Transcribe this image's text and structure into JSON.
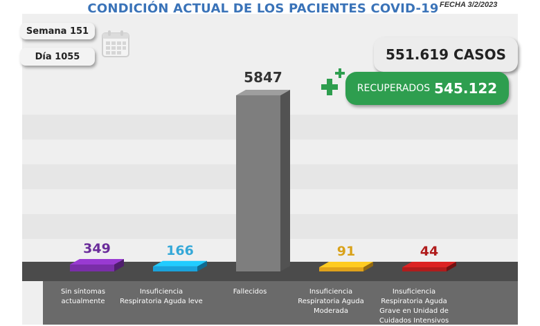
{
  "title": "CONDICIÓN ACTUAL DE LOS PACIENTES COVID-19",
  "fecha": "FECHA 3/2/2023",
  "semana": "Semana 151",
  "dia": "Día 1055",
  "casos": "551.619 CASOS",
  "recuperados_label": "RECUPERADOS",
  "recuperados_value": "545.122",
  "icons": [
    "calendar-icon",
    "plus-icon"
  ],
  "colors": {
    "title": "#3a73b8",
    "recuperados": "#2e9e4f"
  },
  "chart_data": {
    "type": "bar",
    "categories": [
      "Sin síntomas actualmente",
      "Insuficiencia Respiratoria Aguda leve",
      "Fallecidos",
      "Insuficiencia Respiratoria Aguda Moderada",
      "Insuficiencia Respiratoria Aguda Grave en Unidad de Cuidados Intensivos"
    ],
    "values": [
      349,
      166,
      5847,
      91,
      44
    ],
    "value_labels": [
      "349",
      "166",
      "5847",
      "91",
      "44"
    ],
    "colors": [
      "#7a2ea8",
      "#1aa3dc",
      "#7e7e7e",
      "#e0a21a",
      "#b01c1c"
    ],
    "label_colors": [
      "#6a2c9a",
      "#35a8d8",
      "#333333",
      "#d9a21a",
      "#b01c1c"
    ]
  }
}
